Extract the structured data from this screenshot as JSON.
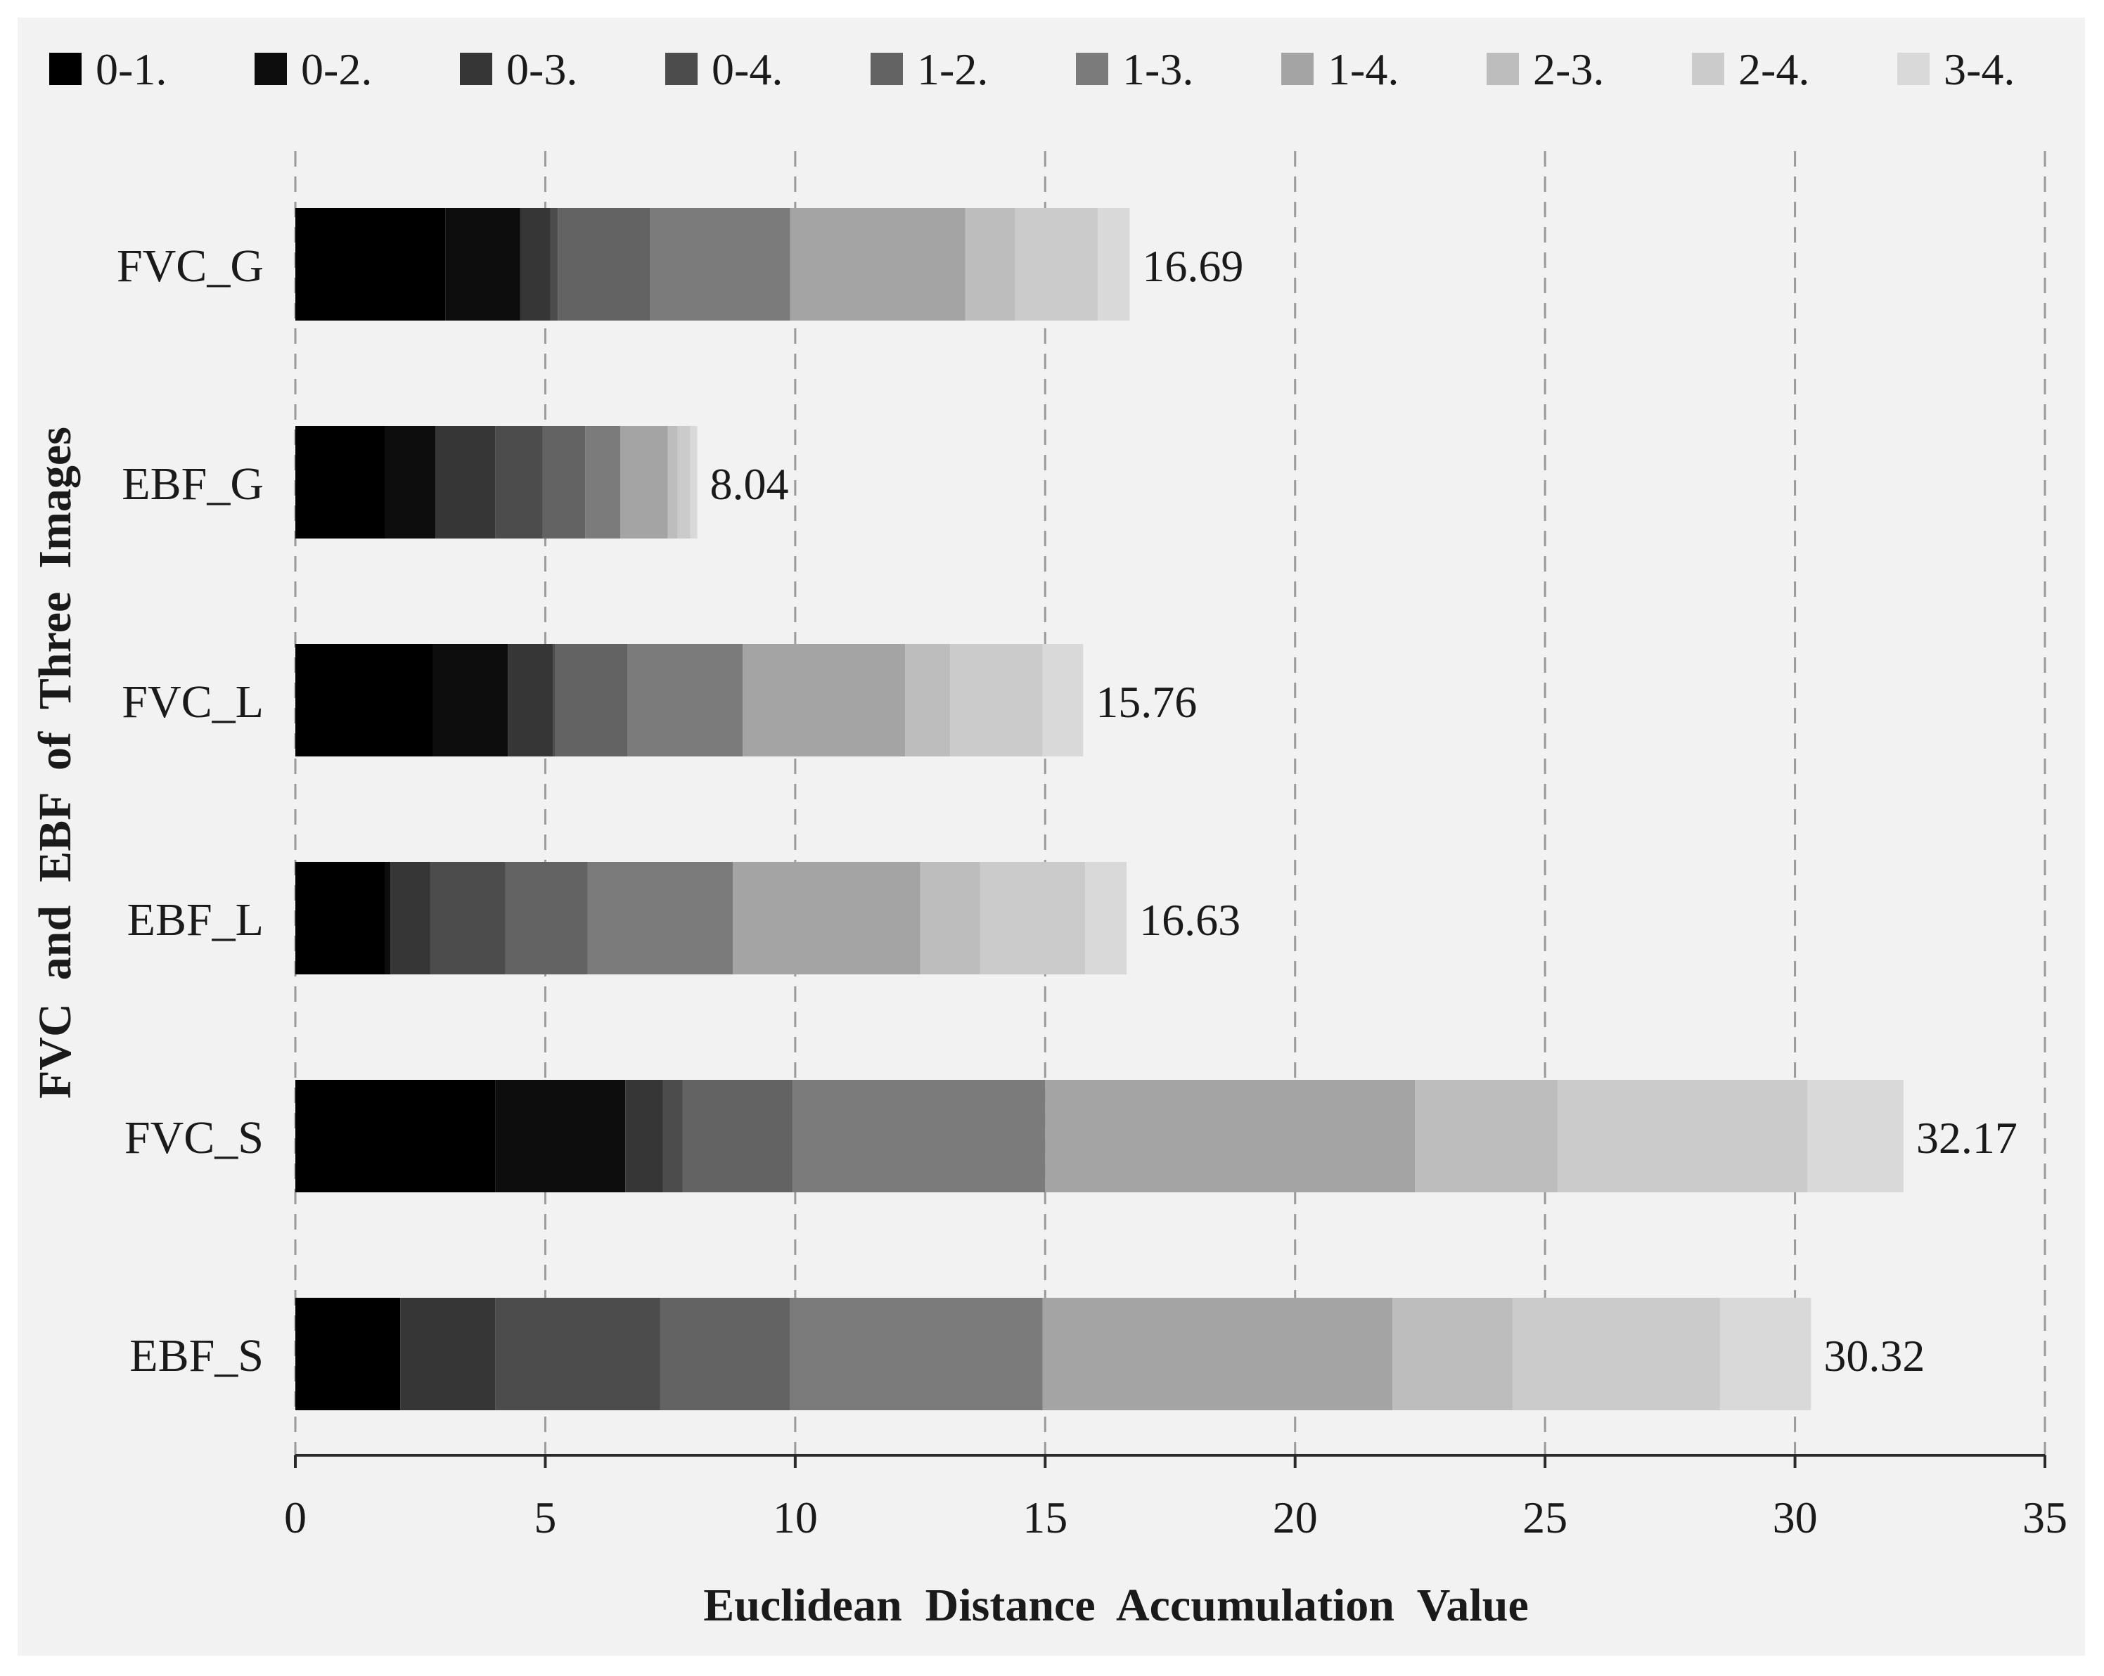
{
  "chart_data": {
    "type": "bar",
    "orientation": "horizontal",
    "stacked": true,
    "title": "",
    "xlabel": "Euclidean  Distance  Accumulation  Value",
    "ylabel": "FVC  and  EBF  of  Three  Images",
    "xlim": [
      0,
      35
    ],
    "xticks": [
      0,
      5,
      10,
      15,
      20,
      25,
      30,
      35
    ],
    "xtick_labels": [
      "0",
      "5",
      "10",
      "15",
      "20",
      "25",
      "30",
      "35"
    ],
    "grid": "vertical dashed",
    "legend_position": "top",
    "categories": [
      "FVC_G",
      "EBF_G",
      "FVC_L",
      "EBF_L",
      "FVC_S",
      "EBF_S"
    ],
    "totals": [
      "16.69",
      "8.04",
      "15.76",
      "16.63",
      "32.17",
      "30.32"
    ],
    "series": [
      {
        "name": "0-1.",
        "color": "#000000",
        "values": [
          3.0,
          1.8,
          2.75,
          1.8,
          4.0,
          2.1
        ]
      },
      {
        "name": "0-2.",
        "color": "#0d0d0d",
        "values": [
          1.5,
          1.0,
          1.5,
          0.1,
          2.6,
          0.0
        ]
      },
      {
        "name": "0-3.",
        "color": "#363636",
        "values": [
          0.6,
          1.2,
          0.9,
          0.8,
          0.75,
          1.9
        ]
      },
      {
        "name": "0-4.",
        "color": "#4c4c4c",
        "values": [
          0.15,
          0.95,
          0.05,
          1.5,
          0.4,
          3.3
        ]
      },
      {
        "name": "1-2.",
        "color": "#636363",
        "values": [
          1.85,
          0.85,
          1.45,
          1.65,
          2.2,
          2.6
        ]
      },
      {
        "name": "1-3.",
        "color": "#7b7b7b",
        "values": [
          2.8,
          0.7,
          2.3,
          2.9,
          5.05,
          5.05
        ]
      },
      {
        "name": "1-4.",
        "color": "#a4a4a4",
        "values": [
          3.5,
          0.95,
          3.25,
          3.75,
          7.4,
          7.0
        ]
      },
      {
        "name": "2-3.",
        "color": "#bdbdbd",
        "values": [
          1.0,
          0.2,
          0.9,
          1.2,
          2.85,
          2.4
        ]
      },
      {
        "name": "2-4.",
        "color": "#cbcbcb",
        "values": [
          1.65,
          0.25,
          1.85,
          2.1,
          5.0,
          4.15
        ]
      },
      {
        "name": "3-4.",
        "color": "#d9d9d9",
        "values": [
          0.64,
          0.14,
          0.81,
          0.83,
          1.92,
          1.82
        ]
      }
    ]
  }
}
